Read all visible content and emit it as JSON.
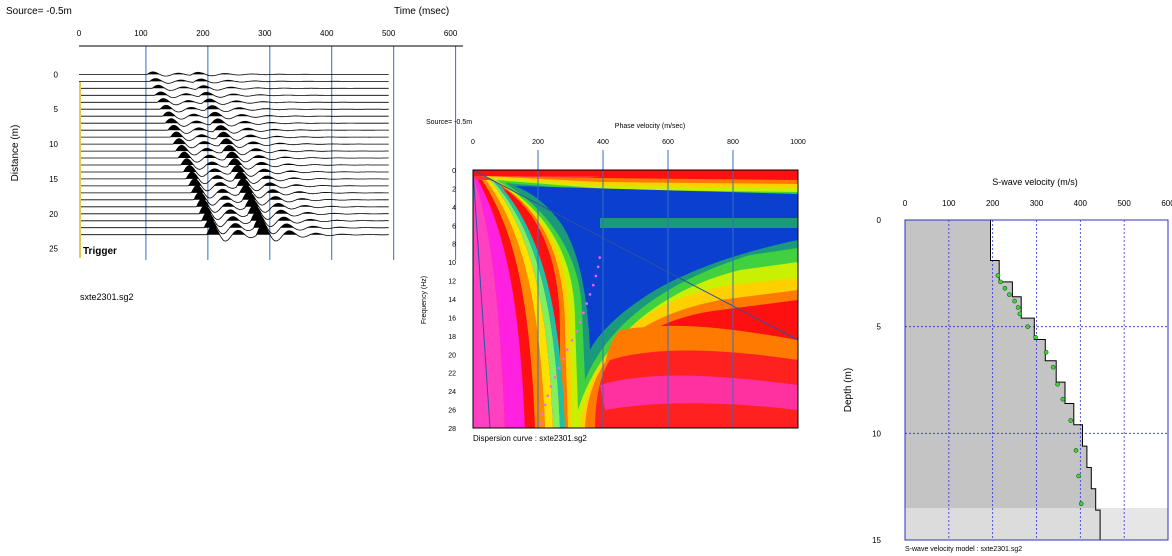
{
  "chart_data": [
    {
      "type": "wiggle-seismogram",
      "source_label": "Source= -0.5m",
      "xlabel": "Time (msec)",
      "ylabel": "Distance (m)",
      "x_ticks": [
        0,
        100,
        200,
        300,
        400,
        500,
        600
      ],
      "y_ticks": [
        0,
        5,
        10,
        15,
        20,
        25
      ],
      "xlim": [
        0,
        620
      ],
      "ylim": [
        -3.5,
        29.5
      ],
      "trace_offsets_m": [
        0,
        1,
        2,
        3,
        4,
        5,
        6,
        7,
        8,
        9,
        10,
        11,
        12,
        13,
        14,
        15,
        16,
        17,
        18,
        19,
        20,
        21,
        22,
        23
      ],
      "first_arrival_slope_ms_per_m": 4.2,
      "first_arrival_t0_ms": 110,
      "second_arrival_t0_ms": 180,
      "trigger_label": "Trigger",
      "caption": "sxte2301.sg2"
    },
    {
      "type": "heatmap",
      "source_label": "Source= -0.5m",
      "xlabel": "Phase velocity (m/sec)",
      "ylabel": "Frequency (Hz)",
      "x_ticks": [
        0,
        200,
        400,
        600,
        800,
        1000
      ],
      "y_ticks": [
        0,
        2,
        4,
        6,
        8,
        10,
        12,
        14,
        16,
        18,
        20,
        22,
        24,
        26,
        28
      ],
      "xlim": [
        0,
        1000
      ],
      "ylim": [
        0,
        28
      ],
      "dispersion_points": [
        {
          "f": 9.5,
          "v": 390
        },
        {
          "f": 10.5,
          "v": 385
        },
        {
          "f": 11.5,
          "v": 378
        },
        {
          "f": 12.5,
          "v": 370
        },
        {
          "f": 13.5,
          "v": 360
        },
        {
          "f": 14.5,
          "v": 350
        },
        {
          "f": 15.5,
          "v": 340
        },
        {
          "f": 16.5,
          "v": 330
        },
        {
          "f": 17.5,
          "v": 318
        },
        {
          "f": 18.5,
          "v": 305
        },
        {
          "f": 19.5,
          "v": 290
        },
        {
          "f": 20.5,
          "v": 278
        },
        {
          "f": 21.5,
          "v": 265
        },
        {
          "f": 22.5,
          "v": 252
        },
        {
          "f": 23.5,
          "v": 240
        },
        {
          "f": 24.5,
          "v": 230
        },
        {
          "f": 25.5,
          "v": 222
        },
        {
          "f": 26.5,
          "v": 215
        },
        {
          "f": 27.5,
          "v": 210
        }
      ],
      "caption": "Dispersion curve : sxte2301.sg2"
    },
    {
      "type": "step-line",
      "xlabel": "S-wave velocity (m/s)",
      "ylabel": "Depth (m)",
      "x_ticks": [
        0,
        100,
        200,
        300,
        400,
        500,
        600
      ],
      "y_ticks": [
        0,
        5,
        10,
        15
      ],
      "xlim": [
        0,
        600
      ],
      "ylim": [
        0,
        15
      ],
      "layers": [
        {
          "top": 0,
          "bottom": 1.9,
          "vs": 195
        },
        {
          "top": 1.9,
          "bottom": 2.9,
          "vs": 215
        },
        {
          "top": 2.9,
          "bottom": 3.6,
          "vs": 245
        },
        {
          "top": 3.6,
          "bottom": 4.6,
          "vs": 265
        },
        {
          "top": 4.6,
          "bottom": 5.6,
          "vs": 295
        },
        {
          "top": 5.6,
          "bottom": 6.6,
          "vs": 320
        },
        {
          "top": 6.6,
          "bottom": 7.6,
          "vs": 345
        },
        {
          "top": 7.6,
          "bottom": 8.6,
          "vs": 365
        },
        {
          "top": 8.6,
          "bottom": 9.6,
          "vs": 385
        },
        {
          "top": 9.6,
          "bottom": 10.6,
          "vs": 405
        },
        {
          "top": 10.6,
          "bottom": 11.6,
          "vs": 415
        },
        {
          "top": 11.6,
          "bottom": 12.6,
          "vs": 425
        },
        {
          "top": 12.6,
          "bottom": 13.6,
          "vs": 435
        },
        {
          "top": 13.6,
          "bottom": 15,
          "vs": 445
        }
      ],
      "halfspace_from_depth": 13.5,
      "points": [
        {
          "d": 2.6,
          "v": 212
        },
        {
          "d": 2.9,
          "v": 218
        },
        {
          "d": 3.2,
          "v": 228
        },
        {
          "d": 3.5,
          "v": 238
        },
        {
          "d": 3.8,
          "v": 250
        },
        {
          "d": 4.1,
          "v": 258
        },
        {
          "d": 4.4,
          "v": 262
        },
        {
          "d": 5.0,
          "v": 280
        },
        {
          "d": 5.5,
          "v": 298
        },
        {
          "d": 6.2,
          "v": 322
        },
        {
          "d": 6.9,
          "v": 338
        },
        {
          "d": 7.7,
          "v": 348
        },
        {
          "d": 8.4,
          "v": 360
        },
        {
          "d": 9.4,
          "v": 378
        },
        {
          "d": 10.8,
          "v": 390
        },
        {
          "d": 12.0,
          "v": 396
        },
        {
          "d": 13.3,
          "v": 402
        }
      ],
      "caption": "S-wave velocity model : sxte2301.sg2"
    }
  ]
}
